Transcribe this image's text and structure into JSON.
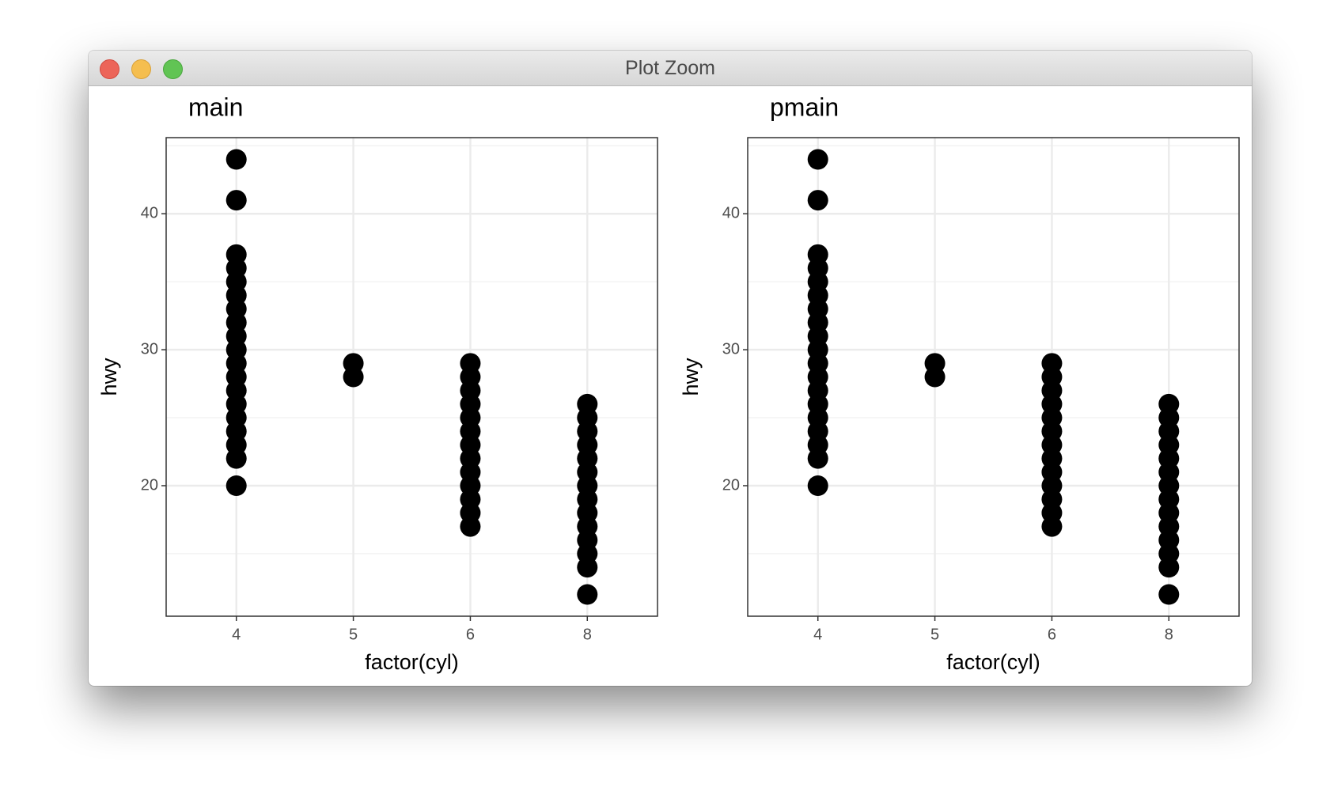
{
  "window": {
    "title": "Plot Zoom"
  },
  "chart_data": [
    {
      "type": "scatter",
      "title": "main",
      "x_label": "factor(cyl)",
      "y_label": "hwy",
      "categories": [
        "4",
        "5",
        "6",
        "8"
      ],
      "x": [
        "4",
        "4",
        "4",
        "4",
        "4",
        "4",
        "4",
        "4",
        "4",
        "4",
        "4",
        "4",
        "4",
        "4",
        "4",
        "4",
        "4",
        "4",
        "4",
        "5",
        "5",
        "6",
        "6",
        "6",
        "6",
        "6",
        "6",
        "6",
        "6",
        "6",
        "6",
        "6",
        "6",
        "6",
        "8",
        "8",
        "8",
        "8",
        "8",
        "8",
        "8",
        "8",
        "8",
        "8",
        "8",
        "8",
        "8",
        "8"
      ],
      "values": [
        44,
        41,
        37,
        36,
        35,
        34,
        33,
        32,
        31,
        30,
        29,
        28,
        27,
        26,
        25,
        24,
        23,
        22,
        20,
        29,
        28,
        29,
        28,
        27,
        26,
        25,
        24,
        23,
        22,
        21,
        20,
        19,
        18,
        17,
        26,
        25,
        24,
        23,
        22,
        21,
        20,
        19,
        18,
        17,
        16,
        15,
        14,
        12
      ],
      "color": "#000000",
      "ylim": [
        10.4,
        45.6
      ],
      "yticks": [
        20,
        30,
        40
      ],
      "grid": true,
      "minor_grid": true
    },
    {
      "type": "scatter",
      "title": "pmain",
      "x_label": "factor(cyl)",
      "y_label": "hwy",
      "categories": [
        "4",
        "5",
        "6",
        "8"
      ],
      "x": [
        "4",
        "4",
        "4",
        "4",
        "4",
        "4",
        "4",
        "4",
        "4",
        "4",
        "4",
        "4",
        "4",
        "4",
        "4",
        "4",
        "4",
        "4",
        "4",
        "5",
        "5",
        "6",
        "6",
        "6",
        "6",
        "6",
        "6",
        "6",
        "6",
        "6",
        "6",
        "6",
        "6",
        "6",
        "8",
        "8",
        "8",
        "8",
        "8",
        "8",
        "8",
        "8",
        "8",
        "8",
        "8",
        "8",
        "8",
        "8"
      ],
      "values": [
        44,
        41,
        37,
        36,
        35,
        34,
        33,
        32,
        31,
        30,
        29,
        28,
        27,
        26,
        25,
        24,
        23,
        22,
        20,
        29,
        28,
        29,
        28,
        27,
        26,
        25,
        24,
        23,
        22,
        21,
        20,
        19,
        18,
        17,
        26,
        25,
        24,
        23,
        22,
        21,
        20,
        19,
        18,
        17,
        16,
        15,
        14,
        12
      ],
      "color": "#000000",
      "ylim": [
        10.4,
        45.6
      ],
      "yticks": [
        20,
        30,
        40
      ],
      "grid": true,
      "minor_grid": true
    }
  ]
}
